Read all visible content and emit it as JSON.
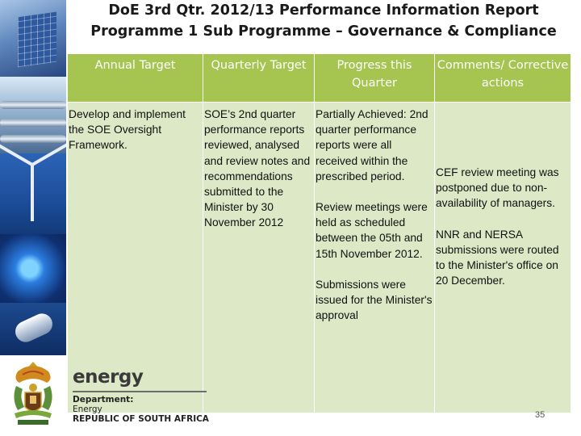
{
  "title": {
    "line1": "DoE 3rd Qtr. 2012/13 Performance Information Report",
    "line2": "Programme 1 Sub Programme – Governance & Compliance"
  },
  "table": {
    "headers": [
      "Annual Target",
      "Quarterly Target",
      "Progress this Quarter",
      "Comments/ Corrective actions"
    ],
    "annual_target": "Develop and implement the SOE Oversight Framework.",
    "quarterly_target": "SOE’s 2nd quarter performance reports reviewed, analysed and review notes and recommendations submitted to the Minister by 30 November 2012",
    "progress": [
      "Partially Achieved: 2nd quarter performance reports were all received within the prescribed period.",
      "Review meetings were held as scheduled between the 05th and 15th November 2012.",
      "Submissions were issued for the Minister's approval"
    ],
    "comments": [
      "CEF review meeting was postponed due to non-availability of managers.",
      "NNR and NERSA submissions were routed to the Minister's office on 20 December."
    ]
  },
  "footer": {
    "brand_word": "energy",
    "dept_line1": "Department:",
    "dept_line2": "Energy",
    "dept_line3": "REPUBLIC OF SOUTH AFRICA"
  },
  "page_number": "35",
  "colors": {
    "header_bg": "#a5c450",
    "cell_bg": "#dde8c6"
  }
}
